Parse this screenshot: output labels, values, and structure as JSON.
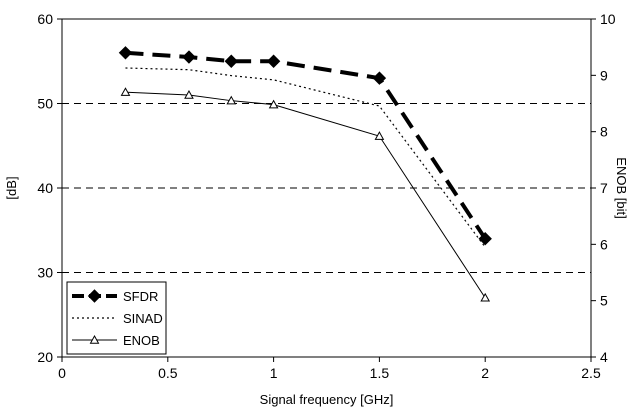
{
  "chart_data": {
    "type": "line",
    "title": "",
    "xlabel": "Signal frequency [GHz]",
    "ylabel": "[dB]",
    "y2label": "ENOB  [bit]",
    "xlim": [
      0,
      2.5
    ],
    "ylim": [
      20,
      60
    ],
    "y2lim": [
      4,
      10
    ],
    "x_ticks": [
      "0",
      "0.5",
      "1",
      "1.5",
      "2",
      "2.5"
    ],
    "y_ticks": [
      "20",
      "30",
      "40",
      "50",
      "60"
    ],
    "y2_ticks": [
      "4",
      "5",
      "6",
      "7",
      "8",
      "9",
      "10"
    ],
    "grid": "horizontal dashed at 30, 40, 50 dB",
    "legend_position": "bottom-left",
    "series": [
      {
        "name": "SFDR",
        "axis": "left",
        "style": "thick-dashed",
        "marker": "diamond",
        "x": [
          0.3,
          0.6,
          0.8,
          1.0,
          1.5,
          2.0
        ],
        "values": [
          56.0,
          55.5,
          55.0,
          55.0,
          53.0,
          34.0
        ]
      },
      {
        "name": "SINAD",
        "axis": "left",
        "style": "dotted",
        "marker": "none",
        "x": [
          0.3,
          0.6,
          0.8,
          1.0,
          1.5,
          2.0
        ],
        "values": [
          54.2,
          54.0,
          53.3,
          52.8,
          49.7,
          33.0
        ]
      },
      {
        "name": "ENOB",
        "axis": "right",
        "style": "solid",
        "marker": "triangle",
        "x": [
          0.3,
          0.6,
          0.8,
          1.0,
          1.5,
          2.0
        ],
        "values": [
          8.7,
          8.65,
          8.55,
          8.48,
          7.92,
          5.05
        ]
      }
    ],
    "colors": {
      "line": "#000000",
      "grid": "#000000",
      "background": "#ffffff"
    }
  }
}
